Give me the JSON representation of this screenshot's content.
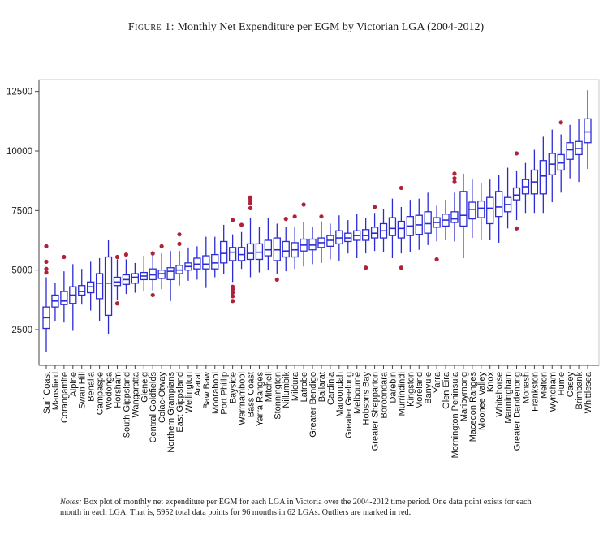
{
  "figure": {
    "label": "Figure 1:",
    "title": "Monthly Net Expenditure per EGM by Victorian LGA (2004-2012)",
    "notes_label": "Notes:",
    "notes_text": "Box plot of monthly net expenditure per EGM for each LGA in Victoria over the 2004-2012 time period.  One data point exists for each month in each LGA. That is, 5952 total data points for 96 months in 62 LGAs.  Outliers are marked in red."
  },
  "chart_data": {
    "type": "box",
    "title": "Monthly Net Expenditure per EGM by Victorian LGA (2004-2012)",
    "xlabel": "",
    "ylabel": "",
    "ylim": [
      1000,
      13000
    ],
    "yticks": [
      2500,
      5000,
      7500,
      10000,
      12500
    ],
    "grid": false,
    "colors": {
      "box": "#2b2bd6",
      "outlier": "#b0213a",
      "axis": "#444444"
    },
    "categories": [
      "Surf Coast",
      "Mansfield",
      "Corangamite",
      "Alpine",
      "Swan Hill",
      "Benalla",
      "Campaspe",
      "Wodonga",
      "Horsham",
      "South Gippsland",
      "Wangaratta",
      "Glenelg",
      "Central Goldfields",
      "Colac-Otway",
      "Northern Grampians",
      "East Gippsland",
      "Wellington",
      "Ararat",
      "Baw Baw",
      "Moorabool",
      "Port Phillip",
      "Bayside",
      "Warrnambool",
      "Bass Coast",
      "Yarra Ranges",
      "Mitchell",
      "Stonnington",
      "Nillumbik",
      "Mildura",
      "Latrobe",
      "Greater Bendigo",
      "Ballarat",
      "Cardinia",
      "Maroondah",
      "Greater Geelong",
      "Melbourne",
      "Hobsons Bay",
      "Greater Shepparton",
      "Boroondara",
      "Darebin",
      "Murrindindi",
      "Kingston",
      "Moreland",
      "Banyule",
      "Yarra",
      "Glen Eira",
      "Mornington Peninsula",
      "Maribyrnong",
      "Macedon Ranges",
      "Moonee Valley",
      "Knox",
      "Whitehorse",
      "Manningham",
      "Greater Dandenong",
      "Monash",
      "Frankston",
      "Melton",
      "Wyndham",
      "Hume",
      "Casey",
      "Brimbank",
      "Whittlesea"
    ],
    "boxes": [
      {
        "min": 1550,
        "q1": 2550,
        "median": 3000,
        "q3": 3450,
        "max": 4700,
        "outliers": [
          4900,
          5050,
          5350,
          6000
        ]
      },
      {
        "min": 2850,
        "q1": 3450,
        "median": 3700,
        "q3": 3950,
        "max": 4450,
        "outliers": []
      },
      {
        "min": 2800,
        "q1": 3550,
        "median": 3700,
        "q3": 4100,
        "max": 4950,
        "outliers": [
          5550
        ]
      },
      {
        "min": 2450,
        "q1": 3600,
        "median": 3950,
        "q3": 4300,
        "max": 5250,
        "outliers": []
      },
      {
        "min": 3550,
        "q1": 3950,
        "median": 4100,
        "q3": 4350,
        "max": 5050,
        "outliers": []
      },
      {
        "min": 3300,
        "q1": 4050,
        "median": 4300,
        "q3": 4500,
        "max": 5350,
        "outliers": []
      },
      {
        "min": 2850,
        "q1": 3800,
        "median": 4450,
        "q3": 4850,
        "max": 5500,
        "outliers": []
      },
      {
        "min": 2300,
        "q1": 3100,
        "median": 4450,
        "q3": 5550,
        "max": 6250,
        "outliers": []
      },
      {
        "min": 3750,
        "q1": 4350,
        "median": 4500,
        "q3": 4700,
        "max": 5450,
        "outliers": [
          3600,
          5550
        ]
      },
      {
        "min": 4000,
        "q1": 4400,
        "median": 4600,
        "q3": 4800,
        "max": 5450,
        "outliers": [
          5650
        ]
      },
      {
        "min": 4050,
        "q1": 4450,
        "median": 4700,
        "q3": 4850,
        "max": 5300,
        "outliers": []
      },
      {
        "min": 4100,
        "q1": 4600,
        "median": 4750,
        "q3": 4900,
        "max": 5600,
        "outliers": []
      },
      {
        "min": 4150,
        "q1": 4600,
        "median": 4800,
        "q3": 5050,
        "max": 5800,
        "outliers": [
          3950,
          5700
        ]
      },
      {
        "min": 4200,
        "q1": 4650,
        "median": 4850,
        "q3": 5000,
        "max": 5700,
        "outliers": [
          6000
        ]
      },
      {
        "min": 3700,
        "q1": 4600,
        "median": 4950,
        "q3": 5100,
        "max": 5800,
        "outliers": []
      },
      {
        "min": 4350,
        "q1": 4850,
        "median": 5000,
        "q3": 5200,
        "max": 5800,
        "outliers": [
          6100,
          6500
        ]
      },
      {
        "min": 4550,
        "q1": 5000,
        "median": 5150,
        "q3": 5300,
        "max": 5950,
        "outliers": []
      },
      {
        "min": 4600,
        "q1": 5050,
        "median": 5250,
        "q3": 5500,
        "max": 6000,
        "outliers": []
      },
      {
        "min": 4250,
        "q1": 5050,
        "median": 5250,
        "q3": 5600,
        "max": 6400,
        "outliers": []
      },
      {
        "min": 4700,
        "q1": 5050,
        "median": 5300,
        "q3": 5650,
        "max": 6400,
        "outliers": []
      },
      {
        "min": 4850,
        "q1": 5300,
        "median": 5700,
        "q3": 6200,
        "max": 6900,
        "outliers": []
      },
      {
        "min": 4500,
        "q1": 5400,
        "median": 5750,
        "q3": 5950,
        "max": 6500,
        "outliers": [
          3700,
          3900,
          4050,
          4200,
          4300,
          7100
        ]
      },
      {
        "min": 5050,
        "q1": 5400,
        "median": 5650,
        "q3": 5950,
        "max": 6600,
        "outliers": [
          6900
        ]
      },
      {
        "min": 4700,
        "q1": 5450,
        "median": 5700,
        "q3": 6100,
        "max": 7200,
        "outliers": [
          7600,
          7800,
          7900,
          8000,
          8050
        ]
      },
      {
        "min": 4900,
        "q1": 5450,
        "median": 5750,
        "q3": 6100,
        "max": 6800,
        "outliers": []
      },
      {
        "min": 5000,
        "q1": 5600,
        "median": 5850,
        "q3": 6250,
        "max": 7200,
        "outliers": []
      },
      {
        "min": 4850,
        "q1": 5400,
        "median": 5850,
        "q3": 6350,
        "max": 6950,
        "outliers": [
          4600
        ]
      },
      {
        "min": 4950,
        "q1": 5550,
        "median": 5800,
        "q3": 6200,
        "max": 6800,
        "outliers": [
          7150
        ]
      },
      {
        "min": 5050,
        "q1": 5550,
        "median": 5850,
        "q3": 6150,
        "max": 6800,
        "outliers": [
          7250
        ]
      },
      {
        "min": 5150,
        "q1": 5800,
        "median": 6050,
        "q3": 6300,
        "max": 7000,
        "outliers": [
          7750
        ]
      },
      {
        "min": 5250,
        "q1": 5850,
        "median": 6050,
        "q3": 6300,
        "max": 6800,
        "outliers": []
      },
      {
        "min": 5300,
        "q1": 5950,
        "median": 6150,
        "q3": 6350,
        "max": 7050,
        "outliers": [
          7250
        ]
      },
      {
        "min": 5450,
        "q1": 6000,
        "median": 6250,
        "q3": 6450,
        "max": 6950,
        "outliers": []
      },
      {
        "min": 5400,
        "q1": 6100,
        "median": 6350,
        "q3": 6650,
        "max": 7300,
        "outliers": []
      },
      {
        "min": 5700,
        "q1": 6200,
        "median": 6350,
        "q3": 6550,
        "max": 7100,
        "outliers": []
      },
      {
        "min": 5500,
        "q1": 6250,
        "median": 6450,
        "q3": 6650,
        "max": 7350,
        "outliers": []
      },
      {
        "min": 5700,
        "q1": 6250,
        "median": 6450,
        "q3": 6700,
        "max": 7200,
        "outliers": [
          5100
        ]
      },
      {
        "min": 5800,
        "q1": 6350,
        "median": 6550,
        "q3": 6800,
        "max": 7400,
        "outliers": [
          7650
        ]
      },
      {
        "min": 5750,
        "q1": 6350,
        "median": 6650,
        "q3": 6950,
        "max": 7550,
        "outliers": []
      },
      {
        "min": 5500,
        "q1": 6450,
        "median": 6750,
        "q3": 7200,
        "max": 8000,
        "outliers": []
      },
      {
        "min": 5700,
        "q1": 6350,
        "median": 6750,
        "q3": 7050,
        "max": 7650,
        "outliers": [
          5100,
          8450
        ]
      },
      {
        "min": 5750,
        "q1": 6450,
        "median": 6850,
        "q3": 7250,
        "max": 7950,
        "outliers": []
      },
      {
        "min": 5850,
        "q1": 6500,
        "median": 6900,
        "q3": 7300,
        "max": 8000,
        "outliers": []
      },
      {
        "min": 6050,
        "q1": 6550,
        "median": 6950,
        "q3": 7450,
        "max": 8250,
        "outliers": []
      },
      {
        "min": 6200,
        "q1": 6800,
        "median": 7000,
        "q3": 7200,
        "max": 7700,
        "outliers": [
          5450
        ]
      },
      {
        "min": 6250,
        "q1": 6850,
        "median": 7100,
        "q3": 7350,
        "max": 7950,
        "outliers": []
      },
      {
        "min": 6200,
        "q1": 7000,
        "median": 7150,
        "q3": 7450,
        "max": 8250,
        "outliers": [
          8700,
          8850,
          9050
        ]
      },
      {
        "min": 5500,
        "q1": 6850,
        "median": 7300,
        "q3": 8300,
        "max": 9050,
        "outliers": []
      },
      {
        "min": 6350,
        "q1": 7150,
        "median": 7550,
        "q3": 7850,
        "max": 8800,
        "outliers": []
      },
      {
        "min": 6250,
        "q1": 7200,
        "median": 7600,
        "q3": 7900,
        "max": 8650,
        "outliers": []
      },
      {
        "min": 6250,
        "q1": 6950,
        "median": 7600,
        "q3": 8050,
        "max": 8800,
        "outliers": []
      },
      {
        "min": 6150,
        "q1": 7250,
        "median": 7650,
        "q3": 8300,
        "max": 9000,
        "outliers": []
      },
      {
        "min": 6750,
        "q1": 7450,
        "median": 7750,
        "q3": 8050,
        "max": 9300,
        "outliers": []
      },
      {
        "min": 7100,
        "q1": 7950,
        "median": 8150,
        "q3": 8450,
        "max": 9150,
        "outliers": [
          6750,
          9900
        ]
      },
      {
        "min": 7400,
        "q1": 8200,
        "median": 8500,
        "q3": 8800,
        "max": 9500,
        "outliers": []
      },
      {
        "min": 7400,
        "q1": 8200,
        "median": 8700,
        "q3": 9200,
        "max": 10050,
        "outliers": []
      },
      {
        "min": 7400,
        "q1": 8200,
        "median": 8950,
        "q3": 9600,
        "max": 10600,
        "outliers": []
      },
      {
        "min": 7850,
        "q1": 9000,
        "median": 9450,
        "q3": 9900,
        "max": 10900,
        "outliers": []
      },
      {
        "min": 8250,
        "q1": 9200,
        "median": 9500,
        "q3": 9850,
        "max": 10700,
        "outliers": [
          11200
        ]
      },
      {
        "min": 8850,
        "q1": 9650,
        "median": 10050,
        "q3": 10350,
        "max": 11100,
        "outliers": []
      },
      {
        "min": 8700,
        "q1": 9850,
        "median": 10100,
        "q3": 10400,
        "max": 11350,
        "outliers": []
      },
      {
        "min": 9250,
        "q1": 10350,
        "median": 10800,
        "q3": 11350,
        "max": 12550,
        "outliers": []
      }
    ]
  }
}
